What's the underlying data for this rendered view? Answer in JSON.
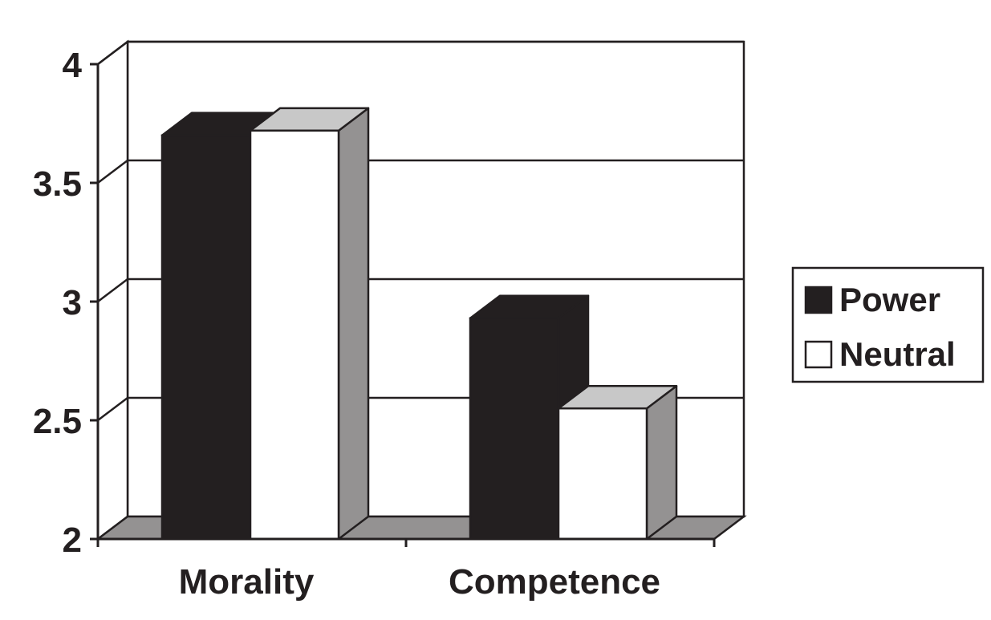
{
  "chart_data": {
    "type": "bar",
    "categories": [
      "Morality",
      "Competence"
    ],
    "series": [
      {
        "name": "Power",
        "values": [
          3.7,
          2.93
        ],
        "color": "#231f20"
      },
      {
        "name": "Neutral",
        "values": [
          3.72,
          2.55
        ],
        "color": "#ffffff"
      }
    ],
    "ylim": [
      2,
      4
    ],
    "yticks": [
      "2",
      "2.5",
      "3",
      "3.5",
      "4"
    ],
    "grid": true,
    "legend": "right",
    "three_d": true,
    "colors": {
      "side": "#949292",
      "top_light": "#c8c8c8",
      "floor": "#949292",
      "ink": "#231f20"
    }
  }
}
